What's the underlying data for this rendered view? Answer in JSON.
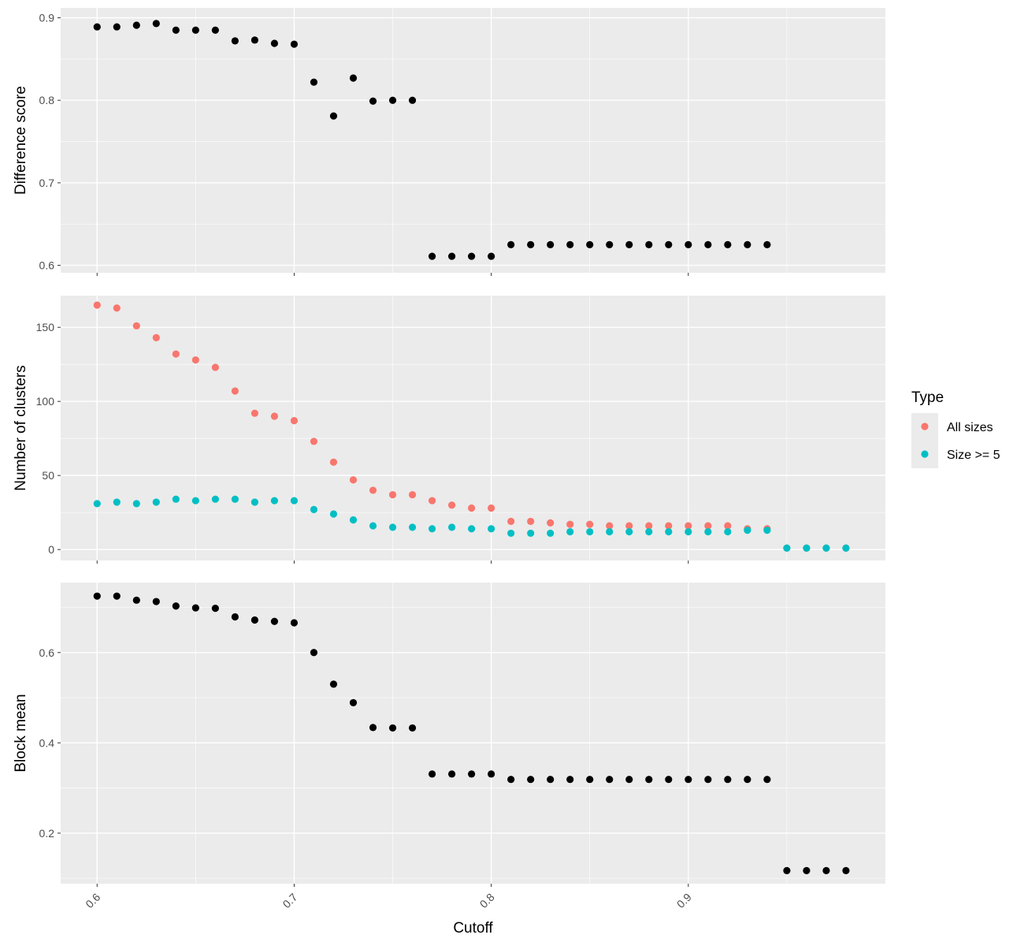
{
  "chart_data": {
    "type": "scatter",
    "x_label": "Cutoff",
    "x_ticks": [
      "0.6",
      "0.7",
      "0.8",
      "0.9"
    ],
    "x_range": [
      0.5815,
      1.0
    ],
    "panels": [
      {
        "ylabel": "Difference score",
        "y_ticks": [
          "0.6",
          "0.7",
          "0.8",
          "0.9"
        ],
        "y_range": [
          0.591,
          0.912
        ],
        "series": [
          {
            "color": "#000000",
            "points": [
              [
                0.6,
                0.889
              ],
              [
                0.61,
                0.889
              ],
              [
                0.62,
                0.891
              ],
              [
                0.63,
                0.893
              ],
              [
                0.64,
                0.885
              ],
              [
                0.65,
                0.885
              ],
              [
                0.66,
                0.885
              ],
              [
                0.67,
                0.872
              ],
              [
                0.68,
                0.873
              ],
              [
                0.69,
                0.869
              ],
              [
                0.7,
                0.868
              ],
              [
                0.71,
                0.822
              ],
              [
                0.72,
                0.781
              ],
              [
                0.73,
                0.827
              ],
              [
                0.74,
                0.799
              ],
              [
                0.75,
                0.8
              ],
              [
                0.76,
                0.8
              ],
              [
                0.77,
                0.611
              ],
              [
                0.78,
                0.611
              ],
              [
                0.79,
                0.611
              ],
              [
                0.8,
                0.611
              ],
              [
                0.81,
                0.625
              ],
              [
                0.82,
                0.625
              ],
              [
                0.83,
                0.625
              ],
              [
                0.84,
                0.625
              ],
              [
                0.85,
                0.625
              ],
              [
                0.86,
                0.625
              ],
              [
                0.87,
                0.625
              ],
              [
                0.88,
                0.625
              ],
              [
                0.89,
                0.625
              ],
              [
                0.9,
                0.625
              ],
              [
                0.91,
                0.625
              ],
              [
                0.92,
                0.625
              ],
              [
                0.93,
                0.625
              ],
              [
                0.94,
                0.625
              ]
            ]
          }
        ]
      },
      {
        "ylabel": "Number of clusters",
        "y_ticks": [
          "0",
          "50",
          "100",
          "150"
        ],
        "y_range": [
          -7.4,
          171.4
        ],
        "series": [
          {
            "name": "All sizes",
            "color": "#F8766D",
            "points": [
              [
                0.6,
                165
              ],
              [
                0.61,
                163
              ],
              [
                0.62,
                151
              ],
              [
                0.63,
                143
              ],
              [
                0.64,
                132
              ],
              [
                0.65,
                128
              ],
              [
                0.66,
                123
              ],
              [
                0.67,
                107
              ],
              [
                0.68,
                92
              ],
              [
                0.69,
                90
              ],
              [
                0.7,
                87
              ],
              [
                0.71,
                73
              ],
              [
                0.72,
                59
              ],
              [
                0.73,
                47
              ],
              [
                0.74,
                40
              ],
              [
                0.75,
                37
              ],
              [
                0.76,
                37
              ],
              [
                0.77,
                33
              ],
              [
                0.78,
                30
              ],
              [
                0.79,
                28
              ],
              [
                0.8,
                28
              ],
              [
                0.81,
                19
              ],
              [
                0.82,
                19
              ],
              [
                0.83,
                18
              ],
              [
                0.84,
                17
              ],
              [
                0.85,
                17
              ],
              [
                0.86,
                16
              ],
              [
                0.87,
                16
              ],
              [
                0.88,
                16
              ],
              [
                0.89,
                16
              ],
              [
                0.9,
                16
              ],
              [
                0.91,
                16
              ],
              [
                0.92,
                16
              ],
              [
                0.93,
                14
              ],
              [
                0.94,
                14
              ],
              [
                0.95,
                1
              ],
              [
                0.96,
                1
              ],
              [
                0.97,
                1
              ],
              [
                0.98,
                1
              ]
            ]
          },
          {
            "name": "Size >= 5",
            "color": "#00BFC4",
            "points": [
              [
                0.6,
                31
              ],
              [
                0.61,
                32
              ],
              [
                0.62,
                31
              ],
              [
                0.63,
                32
              ],
              [
                0.64,
                34
              ],
              [
                0.65,
                33
              ],
              [
                0.66,
                34
              ],
              [
                0.67,
                34
              ],
              [
                0.68,
                32
              ],
              [
                0.69,
                33
              ],
              [
                0.7,
                33
              ],
              [
                0.71,
                27
              ],
              [
                0.72,
                24
              ],
              [
                0.73,
                20
              ],
              [
                0.74,
                16
              ],
              [
                0.75,
                15
              ],
              [
                0.76,
                15
              ],
              [
                0.77,
                14
              ],
              [
                0.78,
                15
              ],
              [
                0.79,
                14
              ],
              [
                0.8,
                14
              ],
              [
                0.81,
                11
              ],
              [
                0.82,
                11
              ],
              [
                0.83,
                11
              ],
              [
                0.84,
                12
              ],
              [
                0.85,
                12
              ],
              [
                0.86,
                12
              ],
              [
                0.87,
                12
              ],
              [
                0.88,
                12
              ],
              [
                0.89,
                12
              ],
              [
                0.9,
                12
              ],
              [
                0.91,
                12
              ],
              [
                0.92,
                12
              ],
              [
                0.93,
                13
              ],
              [
                0.94,
                13
              ],
              [
                0.95,
                1
              ],
              [
                0.96,
                1
              ],
              [
                0.97,
                1
              ],
              [
                0.98,
                1
              ]
            ]
          }
        ]
      },
      {
        "ylabel": "Block mean",
        "y_ticks": [
          "0.2",
          "0.4",
          "0.6"
        ],
        "y_range": [
          0.088,
          0.755
        ],
        "series": [
          {
            "color": "#000000",
            "points": [
              [
                0.6,
                0.725
              ],
              [
                0.61,
                0.725
              ],
              [
                0.62,
                0.716
              ],
              [
                0.63,
                0.713
              ],
              [
                0.64,
                0.703
              ],
              [
                0.65,
                0.699
              ],
              [
                0.66,
                0.698
              ],
              [
                0.67,
                0.679
              ],
              [
                0.68,
                0.672
              ],
              [
                0.69,
                0.669
              ],
              [
                0.7,
                0.666
              ],
              [
                0.71,
                0.6
              ],
              [
                0.72,
                0.53
              ],
              [
                0.73,
                0.489
              ],
              [
                0.74,
                0.434
              ],
              [
                0.75,
                0.433
              ],
              [
                0.76,
                0.433
              ],
              [
                0.77,
                0.331
              ],
              [
                0.78,
                0.331
              ],
              [
                0.79,
                0.331
              ],
              [
                0.8,
                0.331
              ],
              [
                0.81,
                0.319
              ],
              [
                0.82,
                0.319
              ],
              [
                0.83,
                0.319
              ],
              [
                0.84,
                0.319
              ],
              [
                0.85,
                0.319
              ],
              [
                0.86,
                0.319
              ],
              [
                0.87,
                0.319
              ],
              [
                0.88,
                0.319
              ],
              [
                0.89,
                0.319
              ],
              [
                0.9,
                0.319
              ],
              [
                0.91,
                0.319
              ],
              [
                0.92,
                0.319
              ],
              [
                0.93,
                0.319
              ],
              [
                0.94,
                0.319
              ],
              [
                0.95,
                0.117
              ],
              [
                0.96,
                0.117
              ],
              [
                0.97,
                0.117
              ],
              [
                0.98,
                0.117
              ]
            ]
          }
        ]
      }
    ],
    "legend": {
      "title": "Type",
      "position": "right",
      "entries": [
        {
          "label": "All sizes",
          "color": "#F8766D"
        },
        {
          "label": "Size >= 5",
          "color": "#00BFC4"
        }
      ]
    },
    "background_color": "#EBEBEB",
    "grid": true
  }
}
